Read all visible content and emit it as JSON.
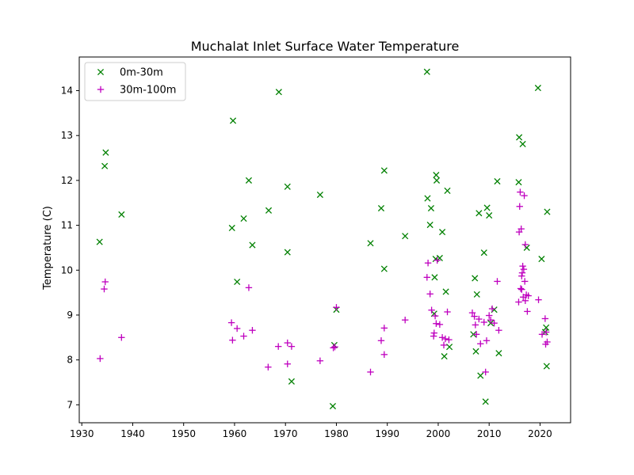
{
  "chart_data": {
    "type": "scatter",
    "title": "Muchalat Inlet Surface Water Temperature",
    "xlabel": "",
    "ylabel": "Temperature (C)",
    "xlim": [
      1929.5,
      2026
    ],
    "ylim": [
      6.6,
      14.75
    ],
    "x_ticks": [
      1930,
      1940,
      1950,
      1960,
      1970,
      1980,
      1990,
      2000,
      2010,
      2020
    ],
    "y_ticks": [
      7,
      8,
      9,
      10,
      11,
      12,
      13,
      14
    ],
    "grid": false,
    "legend_position": "top-left",
    "series": [
      {
        "name": "0m-30m",
        "marker": "x",
        "color": "#008000",
        "points": [
          [
            1933.5,
            10.63
          ],
          [
            1934.5,
            12.32
          ],
          [
            1934.7,
            12.62
          ],
          [
            1937.8,
            11.24
          ],
          [
            1959.5,
            10.94
          ],
          [
            1959.7,
            13.33
          ],
          [
            1960.5,
            9.74
          ],
          [
            1961.8,
            11.15
          ],
          [
            1962.8,
            12.0
          ],
          [
            1963.5,
            10.56
          ],
          [
            1966.7,
            11.33
          ],
          [
            1968.7,
            13.97
          ],
          [
            1970.4,
            11.86
          ],
          [
            1970.4,
            10.4
          ],
          [
            1971.2,
            7.52
          ],
          [
            1976.8,
            11.68
          ],
          [
            1979.3,
            6.97
          ],
          [
            1979.6,
            8.33
          ],
          [
            1980.0,
            9.12
          ],
          [
            1986.7,
            10.6
          ],
          [
            1988.8,
            11.38
          ],
          [
            1989.4,
            12.22
          ],
          [
            1989.4,
            10.03
          ],
          [
            1993.5,
            10.76
          ],
          [
            1997.8,
            14.42
          ],
          [
            1997.9,
            11.6
          ],
          [
            1998.4,
            11.01
          ],
          [
            1998.6,
            11.38
          ],
          [
            1999.2,
            9.03
          ],
          [
            1999.3,
            9.84
          ],
          [
            1999.5,
            10.25
          ],
          [
            1999.6,
            12.12
          ],
          [
            1999.7,
            12.0
          ],
          [
            2000.3,
            10.27
          ],
          [
            2000.8,
            10.85
          ],
          [
            2001.2,
            8.08
          ],
          [
            2001.5,
            9.52
          ],
          [
            2001.8,
            11.77
          ],
          [
            2002.2,
            8.29
          ],
          [
            2006.9,
            8.57
          ],
          [
            2007.2,
            9.82
          ],
          [
            2007.4,
            8.19
          ],
          [
            2007.6,
            9.46
          ],
          [
            2008.0,
            11.27
          ],
          [
            2008.3,
            7.65
          ],
          [
            2009.0,
            10.39
          ],
          [
            2009.3,
            7.07
          ],
          [
            2009.6,
            11.39
          ],
          [
            2010.0,
            11.22
          ],
          [
            2010.3,
            8.82
          ],
          [
            2011.0,
            9.12
          ],
          [
            2011.6,
            11.98
          ],
          [
            2011.9,
            8.15
          ],
          [
            2015.8,
            11.96
          ],
          [
            2015.9,
            12.96
          ],
          [
            2016.6,
            12.81
          ],
          [
            2017.4,
            10.5
          ],
          [
            2019.6,
            14.06
          ],
          [
            2020.3,
            10.25
          ],
          [
            2021.0,
            8.62
          ],
          [
            2021.2,
            8.72
          ],
          [
            2021.3,
            7.86
          ],
          [
            2021.4,
            11.3
          ]
        ]
      },
      {
        "name": "30m-100m",
        "marker": "+",
        "color": "#bf00bf",
        "points": [
          [
            1933.6,
            8.03
          ],
          [
            1934.4,
            9.58
          ],
          [
            1934.6,
            9.74
          ],
          [
            1937.8,
            8.5
          ],
          [
            1959.4,
            8.83
          ],
          [
            1959.6,
            8.44
          ],
          [
            1960.5,
            8.7
          ],
          [
            1961.8,
            8.53
          ],
          [
            1962.8,
            9.61
          ],
          [
            1963.5,
            8.66
          ],
          [
            1966.6,
            7.84
          ],
          [
            1968.6,
            8.3
          ],
          [
            1970.4,
            8.38
          ],
          [
            1970.4,
            7.91
          ],
          [
            1971.2,
            8.3
          ],
          [
            1976.8,
            7.98
          ],
          [
            1979.4,
            8.27
          ],
          [
            1979.7,
            8.29
          ],
          [
            1980.0,
            9.17
          ],
          [
            1986.7,
            7.73
          ],
          [
            1988.8,
            8.43
          ],
          [
            1989.4,
            8.12
          ],
          [
            1989.4,
            8.71
          ],
          [
            1993.5,
            8.89
          ],
          [
            1997.8,
            9.84
          ],
          [
            1998.0,
            10.16
          ],
          [
            1998.4,
            9.47
          ],
          [
            1998.7,
            9.11
          ],
          [
            1999.1,
            8.53
          ],
          [
            1999.2,
            8.6
          ],
          [
            1999.4,
            8.98
          ],
          [
            1999.6,
            8.81
          ],
          [
            1999.8,
            10.22
          ],
          [
            2000.3,
            8.79
          ],
          [
            2000.8,
            8.5
          ],
          [
            2001.1,
            8.33
          ],
          [
            2001.4,
            8.47
          ],
          [
            2001.8,
            9.07
          ],
          [
            2002.1,
            8.45
          ],
          [
            2006.7,
            9.05
          ],
          [
            2007.1,
            8.97
          ],
          [
            2007.3,
            8.78
          ],
          [
            2007.5,
            8.57
          ],
          [
            2008.0,
            8.91
          ],
          [
            2008.3,
            8.36
          ],
          [
            2009.0,
            8.84
          ],
          [
            2009.3,
            7.73
          ],
          [
            2009.5,
            8.43
          ],
          [
            2010.0,
            8.99
          ],
          [
            2010.3,
            8.89
          ],
          [
            2010.6,
            9.14
          ],
          [
            2011.0,
            8.82
          ],
          [
            2011.6,
            9.75
          ],
          [
            2011.9,
            8.66
          ],
          [
            2015.8,
            9.29
          ],
          [
            2015.9,
            10.85
          ],
          [
            2016.0,
            11.42
          ],
          [
            2016.1,
            11.74
          ],
          [
            2016.2,
            9.59
          ],
          [
            2016.3,
            10.92
          ],
          [
            2016.4,
            9.87
          ],
          [
            2016.4,
            9.57
          ],
          [
            2016.5,
            9.94
          ],
          [
            2016.6,
            10.09
          ],
          [
            2016.7,
            9.4
          ],
          [
            2016.8,
            10.02
          ],
          [
            2016.9,
            11.66
          ],
          [
            2017.0,
            9.75
          ],
          [
            2017.1,
            9.32
          ],
          [
            2017.1,
            10.57
          ],
          [
            2017.3,
            9.45
          ],
          [
            2017.5,
            9.08
          ],
          [
            2017.7,
            9.43
          ],
          [
            2019.7,
            9.34
          ],
          [
            2020.4,
            8.57
          ],
          [
            2021.0,
            8.92
          ],
          [
            2021.1,
            8.35
          ],
          [
            2021.2,
            8.62
          ],
          [
            2021.4,
            8.4
          ]
        ]
      }
    ]
  }
}
